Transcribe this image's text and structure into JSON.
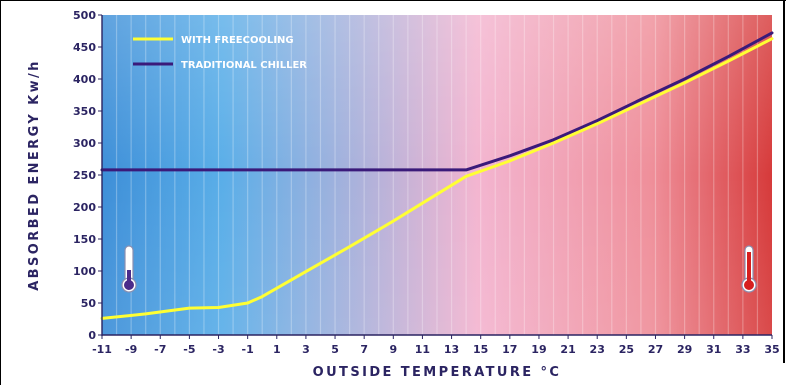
{
  "chart_data": {
    "type": "line",
    "xlabel": "OUTSIDE TEMPERATURE °C",
    "ylabel": "ABSORBED ENERGY Kw/h",
    "xlim": [
      -11,
      35
    ],
    "ylim": [
      0,
      500
    ],
    "x_ticks": [
      -11,
      -9,
      -7,
      -5,
      -3,
      -1,
      1,
      3,
      5,
      7,
      9,
      11,
      13,
      15,
      17,
      19,
      21,
      23,
      25,
      27,
      29,
      31,
      33,
      35
    ],
    "y_ticks": [
      0,
      50,
      100,
      150,
      200,
      250,
      300,
      350,
      400,
      450,
      500
    ],
    "legend_position": "top-left",
    "grid": false,
    "series": [
      {
        "name": "WITH FREECOOLING",
        "color": "#ffff33",
        "points": [
          [
            -11,
            26
          ],
          [
            -8,
            33
          ],
          [
            -5,
            42
          ],
          [
            -3,
            43
          ],
          [
            -1,
            50
          ],
          [
            0,
            60
          ],
          [
            3,
            99
          ],
          [
            6,
            138
          ],
          [
            9,
            178
          ],
          [
            12,
            220
          ],
          [
            14,
            248
          ],
          [
            17,
            272
          ],
          [
            20,
            300
          ],
          [
            23,
            330
          ],
          [
            26,
            362
          ],
          [
            29,
            394
          ],
          [
            32,
            428
          ],
          [
            35,
            463
          ]
        ]
      },
      {
        "name": "TRADITIONAL CHILLER",
        "color": "#3a1a7a",
        "points": [
          [
            -11,
            258
          ],
          [
            14,
            258
          ],
          [
            17,
            280
          ],
          [
            20,
            305
          ],
          [
            23,
            335
          ],
          [
            26,
            368
          ],
          [
            29,
            400
          ],
          [
            32,
            435
          ],
          [
            35,
            472
          ]
        ]
      }
    ],
    "background": {
      "cold_color": "#3e8fd8",
      "mid_color": "#f3b5d0",
      "hot_color": "#d63a3a",
      "icons": [
        "cold-thermometer-icon",
        "hot-thermometer-icon"
      ],
      "icon_colors": {
        "cold": "#4b2b8a",
        "hot": "#d61f1f"
      }
    }
  }
}
